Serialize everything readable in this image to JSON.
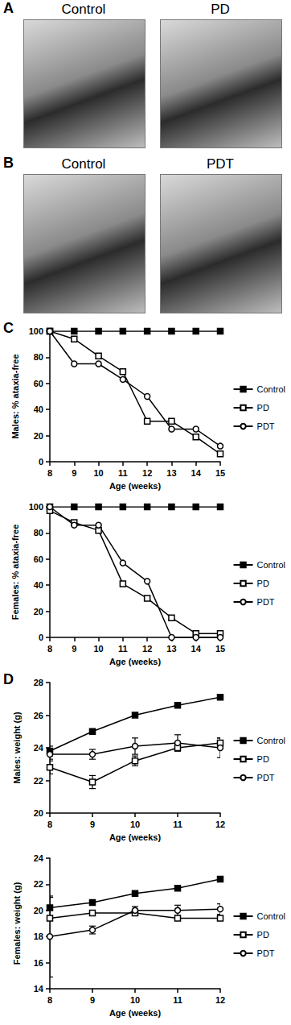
{
  "figure": {
    "panels": [
      {
        "label": "A",
        "images": [
          "Control",
          "PD"
        ]
      },
      {
        "label": "B",
        "images": [
          "Control",
          "PDT"
        ]
      },
      {
        "label": "C"
      },
      {
        "label": "D"
      }
    ]
  },
  "chart_data": [
    {
      "type": "line",
      "panel": "C",
      "x_label": "Age (weeks)",
      "y_label": "Males: % ataxia-free",
      "x": [
        8,
        9,
        10,
        11,
        12,
        13,
        14,
        15
      ],
      "xlim": [
        8,
        15
      ],
      "xticks": [
        8,
        9,
        10,
        11,
        12,
        13,
        14,
        15
      ],
      "ylim": [
        0,
        100
      ],
      "yticks": [
        0,
        20,
        40,
        60,
        80,
        100
      ],
      "grid": false,
      "legend": "right",
      "series": [
        {
          "name": "Control",
          "color": "#000000",
          "marker": "square",
          "values": [
            100,
            100,
            100,
            100,
            100,
            100,
            100,
            100
          ]
        },
        {
          "name": "PD",
          "color": "#000000",
          "marker": "square-open",
          "values": [
            100,
            94,
            81,
            69,
            31,
            31,
            19,
            6
          ]
        },
        {
          "name": "PDT",
          "color": "#000000",
          "marker": "circle-open",
          "values": [
            100,
            75,
            75,
            63,
            50,
            25,
            25,
            12
          ]
        }
      ]
    },
    {
      "type": "line",
      "x_label": "Age (weeks)",
      "y_label": "Females: % ataxia-free",
      "x": [
        8,
        9,
        10,
        11,
        12,
        13,
        14,
        15
      ],
      "xlim": [
        8,
        15
      ],
      "xticks": [
        8,
        9,
        10,
        11,
        12,
        13,
        14,
        15
      ],
      "ylim": [
        0,
        100
      ],
      "yticks": [
        0,
        20,
        40,
        60,
        80,
        100
      ],
      "grid": false,
      "legend": "right",
      "series": [
        {
          "name": "Control",
          "color": "#000000",
          "marker": "square",
          "values": [
            100,
            100,
            100,
            100,
            100,
            100,
            100,
            100
          ]
        },
        {
          "name": "PD",
          "color": "#000000",
          "marker": "square-open",
          "values": [
            97,
            88,
            82,
            41,
            30,
            15,
            3,
            3
          ]
        },
        {
          "name": "PDT",
          "color": "#000000",
          "marker": "circle-open",
          "values": [
            100,
            86,
            86,
            57,
            43,
            0,
            0,
            0
          ]
        }
      ]
    },
    {
      "type": "line",
      "panel": "D",
      "x_label": "Age (weeks)",
      "y_label": "Males: weight (g)",
      "x": [
        8,
        9,
        10,
        11,
        12
      ],
      "xlim": [
        8,
        12
      ],
      "xticks": [
        8,
        9,
        10,
        11,
        12
      ],
      "ylim": [
        20,
        28
      ],
      "yticks": [
        20,
        22,
        24,
        26,
        28
      ],
      "grid": false,
      "legend": "right",
      "series": [
        {
          "name": "Control",
          "color": "#000000",
          "marker": "square",
          "values": [
            23.8,
            25.0,
            26.0,
            26.6,
            27.1
          ],
          "errors": [
            0.3,
            0.1,
            0.1,
            0.1,
            0.1
          ]
        },
        {
          "name": "PD",
          "color": "#000000",
          "marker": "square-open",
          "values": [
            22.8,
            21.9,
            23.2,
            24.0,
            24.3
          ],
          "errors": [
            0.4,
            0.4,
            0.3,
            0.2,
            0.3
          ]
        },
        {
          "name": "PDT",
          "color": "#000000",
          "marker": "circle-open",
          "values": [
            23.6,
            23.6,
            24.1,
            24.3,
            24.0
          ],
          "errors": [
            0.3,
            0.3,
            0.5,
            0.5,
            0.6
          ]
        }
      ]
    },
    {
      "type": "line",
      "x_label": "Age (weeks)",
      "y_label": "Females: weight (g)",
      "x": [
        8,
        9,
        10,
        11,
        12
      ],
      "xlim": [
        8,
        12
      ],
      "xticks": [
        8,
        9,
        10,
        11,
        12
      ],
      "ylim": [
        14,
        24
      ],
      "yticks": [
        14,
        16,
        18,
        20,
        22,
        24
      ],
      "grid": false,
      "legend": "right",
      "series": [
        {
          "name": "Control",
          "color": "#000000",
          "marker": "square",
          "values": [
            20.2,
            20.6,
            21.3,
            21.7,
            22.4
          ],
          "errors": [
            0.8,
            0.1,
            0.1,
            0.1,
            0.1
          ]
        },
        {
          "name": "PD",
          "color": "#000000",
          "marker": "square-open",
          "values": [
            19.4,
            19.8,
            19.8,
            19.4,
            19.4
          ],
          "errors": [
            0.1,
            0.1,
            0.1,
            0.1,
            0.1
          ]
        },
        {
          "name": "PDT",
          "color": "#000000",
          "marker": "circle-open",
          "values": [
            18.0,
            18.5,
            20.0,
            20.0,
            20.1
          ],
          "errors": [
            3.1,
            0.3,
            0.3,
            0.4,
            0.4
          ]
        }
      ]
    }
  ]
}
